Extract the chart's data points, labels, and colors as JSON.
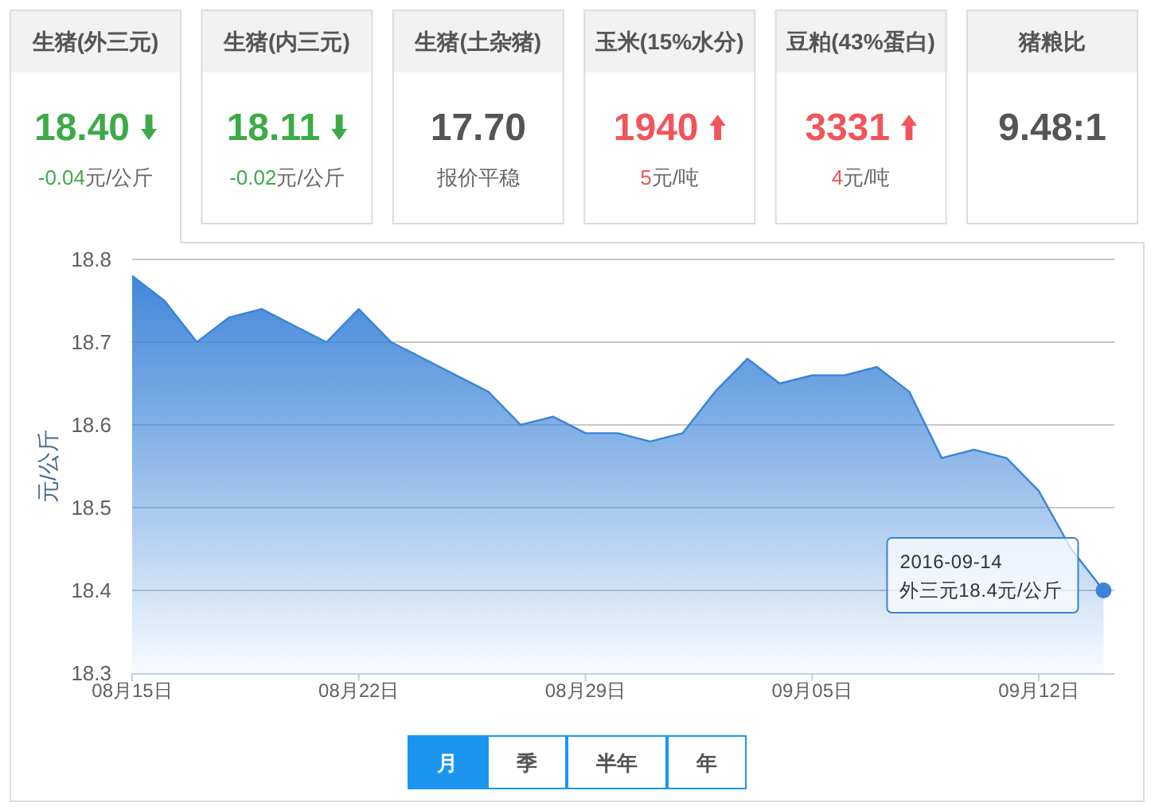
{
  "chart_data": [
    {
      "type": "other",
      "title": "生猪(外三元)",
      "annotations": [
        "18.40",
        "元/公斤"
      ],
      "values": [
        -0.04
      ],
      "value_labels": [
        "-0.04"
      ],
      "colors": [
        "#3daa48"
      ]
    },
    {
      "type": "other",
      "title": "生猪(内三元)",
      "annotations": [
        "18.11",
        "元/公斤"
      ],
      "values": [
        -0.02
      ],
      "value_labels": [
        "-0.02"
      ],
      "colors": [
        "#3daa48"
      ]
    },
    {
      "type": "other",
      "title": "生猪(土杂猪)",
      "annotations": [
        "17.70",
        "报价平稳"
      ]
    },
    {
      "type": "other",
      "title": "玉米(15%水分)",
      "annotations": [
        "1940",
        "元/吨"
      ],
      "values": [
        5
      ],
      "value_labels": [
        "5"
      ],
      "colors": [
        "#f2545b"
      ]
    },
    {
      "type": "other",
      "title": "豆粕(43%蛋白)",
      "annotations": [
        "3331",
        "元/吨"
      ],
      "values": [
        4
      ],
      "value_labels": [
        "4"
      ],
      "colors": [
        "#f2545b"
      ]
    },
    {
      "type": "other",
      "title": "猪粮比",
      "annotations": [
        "9.48:1"
      ]
    },
    {
      "type": "area",
      "ylabel": "元/公斤",
      "x": [
        "2016-08-15",
        "2016-08-16",
        "2016-08-17",
        "2016-08-18",
        "2016-08-19",
        "2016-08-20",
        "2016-08-21",
        "2016-08-22",
        "2016-08-23",
        "2016-08-24",
        "2016-08-25",
        "2016-08-26",
        "2016-08-27",
        "2016-08-28",
        "2016-08-29",
        "2016-08-30",
        "2016-08-31",
        "2016-09-01",
        "2016-09-02",
        "2016-09-03",
        "2016-09-04",
        "2016-09-05",
        "2016-09-06",
        "2016-09-07",
        "2016-09-08",
        "2016-09-09",
        "2016-09-10",
        "2016-09-11",
        "2016-09-12",
        "2016-09-13",
        "2016-09-14"
      ],
      "series": [
        {
          "color": "#3a83d8",
          "values": [
            18.78,
            18.75,
            18.7,
            18.73,
            18.74,
            18.72,
            18.7,
            18.74,
            18.7,
            18.68,
            18.66,
            18.64,
            18.6,
            18.61,
            18.59,
            18.59,
            18.58,
            18.59,
            18.64,
            18.68,
            18.65,
            18.66,
            18.66,
            18.67,
            18.64,
            18.56,
            18.57,
            18.56,
            18.52,
            18.45,
            18.4
          ]
        }
      ],
      "xlim": [
        "2016-08-15",
        "2016-09-14T08:00"
      ],
      "xticks": [
        {
          "value": "2016-08-15",
          "label": "08月15日"
        },
        {
          "value": "2016-08-22",
          "label": "08月22日"
        },
        {
          "value": "2016-08-29",
          "label": "08月29日"
        },
        {
          "value": "2016-09-05",
          "label": "09月05日"
        },
        {
          "value": "2016-09-12",
          "label": "09月12日"
        }
      ],
      "ylim": [
        18.3,
        18.8
      ],
      "yticks": [
        18.3,
        18.4,
        18.5,
        18.6,
        18.7,
        18.8
      ],
      "grid": "y",
      "annotations": [
        {
          "text": "2016-09-14\n外三元18.4元/公斤",
          "x": "2016-09-14",
          "y": 18.4
        }
      ]
    },
    {
      "type": "other",
      "categories": [
        "月",
        "季",
        "半年",
        "年"
      ],
      "colors": [
        "#1a96ef",
        "#ffffff",
        "#ffffff",
        "#ffffff"
      ]
    }
  ]
}
